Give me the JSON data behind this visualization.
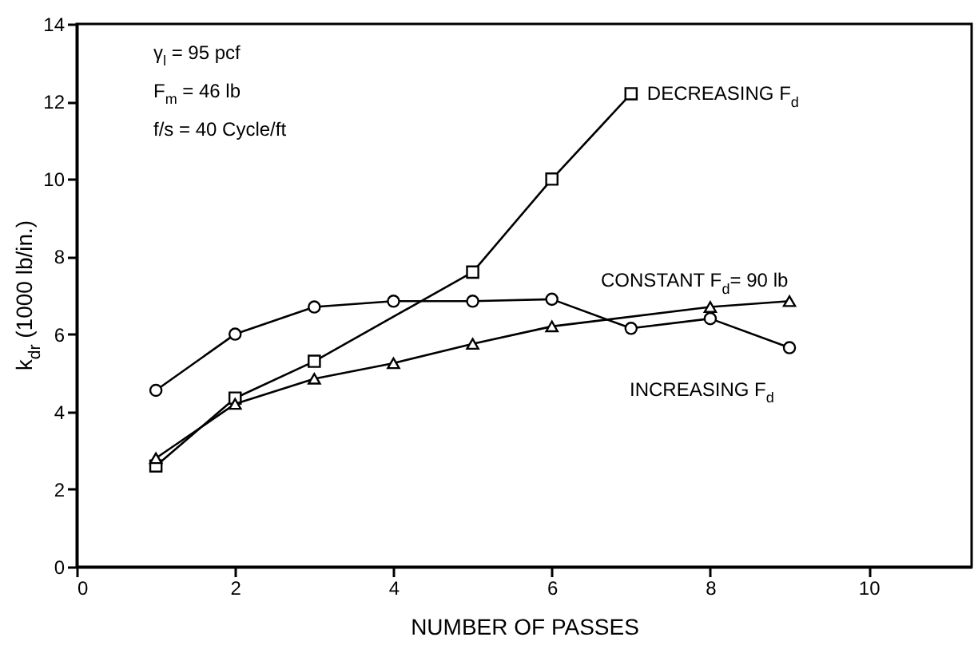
{
  "chart_data": {
    "type": "line",
    "xlabel": "NUMBER OF PASSES",
    "ylabel": "k$_{dr}$ (1000 lb/in.)",
    "xlim": [
      0,
      11.3
    ],
    "xticks": [
      0,
      2,
      4,
      6,
      8,
      10
    ],
    "ylim": [
      0,
      14
    ],
    "yticks": [
      0,
      2,
      4,
      6,
      8,
      10,
      12,
      14
    ],
    "grid": false,
    "line_style": "solid",
    "series": [
      {
        "name": "DECREASING F$_{d}$",
        "color": "#000000",
        "marker": "square",
        "x": [
          1,
          2,
          3,
          5,
          6,
          7
        ],
        "values": [
          2.6,
          4.35,
          5.3,
          7.6,
          10.0,
          12.2
        ]
      },
      {
        "name": "CONSTANT F$_{d}$= 90 lb",
        "color": "#000000",
        "marker": "triangle",
        "x": [
          1,
          2,
          3,
          4,
          5,
          6,
          8,
          9
        ],
        "values": [
          2.8,
          4.2,
          4.85,
          5.25,
          5.75,
          6.2,
          6.7,
          6.85
        ]
      },
      {
        "name": "INCREASING F$_{d}$",
        "color": "#000000",
        "marker": "circle",
        "x": [
          1,
          2,
          3,
          4,
          5,
          6,
          7,
          8,
          9
        ],
        "values": [
          4.55,
          6.0,
          6.7,
          6.85,
          6.85,
          6.9,
          6.15,
          6.4,
          5.65
        ]
      }
    ],
    "annotations": [
      "γ$_{l}$ = 95 pcf",
      "F$_{m}$ = 46 lb",
      "f/s = 40 Cycle/ft"
    ]
  }
}
